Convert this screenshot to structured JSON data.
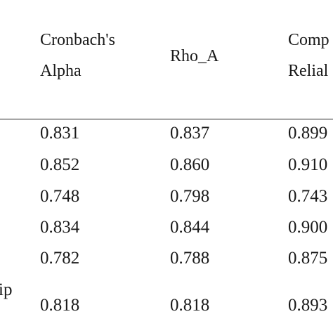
{
  "table": {
    "header": [
      [
        "Cronbach's",
        "Alpha"
      ],
      [
        "Rho_A"
      ],
      [
        "Comp",
        "Relial"
      ]
    ],
    "stub_fragments": [
      "ip"
    ],
    "rows": [
      [
        "0.831",
        "0.837",
        "0.899"
      ],
      [
        "0.852",
        "0.860",
        "0.910"
      ],
      [
        "0.748",
        "0.798",
        "0.743"
      ],
      [
        "0.834",
        "0.844",
        "0.900"
      ],
      [
        "0.782",
        "0.788",
        "0.875"
      ],
      [
        "0.818",
        "0.818",
        "0.893"
      ]
    ]
  }
}
